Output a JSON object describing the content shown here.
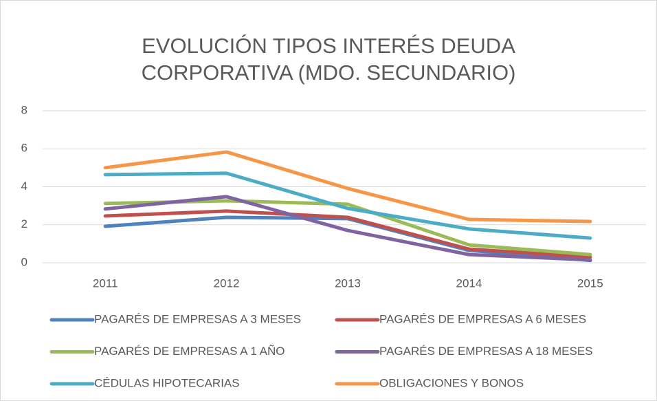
{
  "chart_data": {
    "type": "line",
    "title": [
      "EVOLUCIÓN TIPOS INTERÉS DEUDA",
      "CORPORATIVA (MDO. SECUNDARIO)"
    ],
    "categories": [
      "2011",
      "2012",
      "2013",
      "2014",
      "2015"
    ],
    "series": [
      {
        "name": "PAGARÉS DE EMPRESAS A 3 MESES",
        "color": "#4f81bd",
        "values": [
          1.92,
          2.39,
          2.32,
          0.65,
          0.12
        ]
      },
      {
        "name": "PAGARÉS DE EMPRESAS A 6 MESES",
        "color": "#c0504d",
        "values": [
          2.46,
          2.72,
          2.39,
          0.72,
          0.3
        ]
      },
      {
        "name": "PAGARÉS DE EMPRESAS A 1 AÑO",
        "color": "#9bbb59",
        "values": [
          3.12,
          3.26,
          3.08,
          0.94,
          0.43
        ]
      },
      {
        "name": "PAGARÉS DE EMPRESAS A 18 MESES",
        "color": "#8064a2",
        "values": [
          2.83,
          3.48,
          1.7,
          0.43,
          0.15
        ]
      },
      {
        "name": "CÉDULAS HIPOTECARIAS",
        "color": "#4bacc6",
        "values": [
          4.64,
          4.71,
          2.86,
          1.78,
          1.3
        ]
      },
      {
        "name": "OBLIGACIONES Y BONOS",
        "color": "#f79646",
        "values": [
          5.0,
          5.83,
          3.91,
          2.28,
          2.17
        ]
      }
    ],
    "ylim": [
      0,
      8
    ],
    "yticks": [
      0,
      2,
      4,
      6,
      8
    ],
    "grid": true,
    "legend": "bottom"
  }
}
